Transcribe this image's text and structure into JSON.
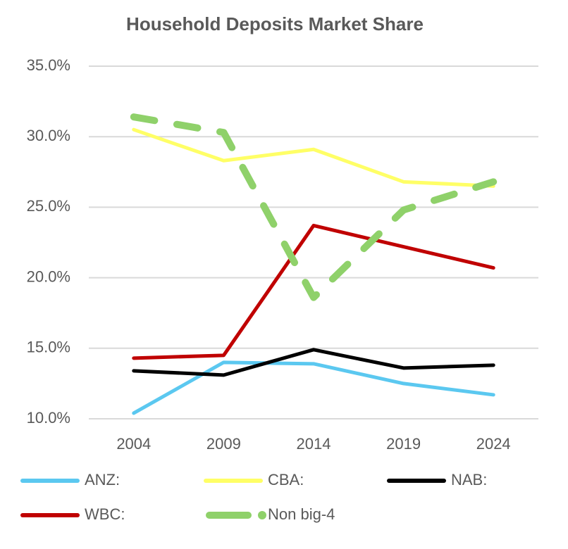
{
  "chart_data": {
    "type": "line",
    "title": "Household Deposits Market  Share",
    "categories": [
      "2004",
      "2009",
      "2014",
      "2019",
      "2024"
    ],
    "series": [
      {
        "name": "ANZ:",
        "color": "#5bc8f0",
        "values": [
          10.4,
          14.0,
          13.9,
          12.5,
          11.7
        ]
      },
      {
        "name": "CBA:",
        "color": "#ffff66",
        "values": [
          30.5,
          28.3,
          29.1,
          26.8,
          26.5
        ]
      },
      {
        "name": "NAB:",
        "color": "#000000",
        "values": [
          13.4,
          13.1,
          14.9,
          13.6,
          13.8
        ]
      },
      {
        "name": "WBC:",
        "color": "#c00000",
        "values": [
          14.3,
          14.5,
          23.7,
          22.2,
          20.7
        ]
      },
      {
        "name": "Non big-4",
        "color": "#8fd16a",
        "line_style": "dashed",
        "values": [
          31.4,
          30.3,
          18.6,
          24.8,
          26.8
        ]
      }
    ],
    "ylim": [
      10,
      35
    ],
    "yticks": [
      {
        "value": 10,
        "label": "10.0%"
      },
      {
        "value": 15,
        "label": "15.0%"
      },
      {
        "value": 20,
        "label": "20.0%"
      },
      {
        "value": 25,
        "label": "25.0%"
      },
      {
        "value": 30,
        "label": "30.0%"
      },
      {
        "value": 35,
        "label": "35.0%"
      }
    ],
    "grid": true,
    "legend": "bottom"
  }
}
